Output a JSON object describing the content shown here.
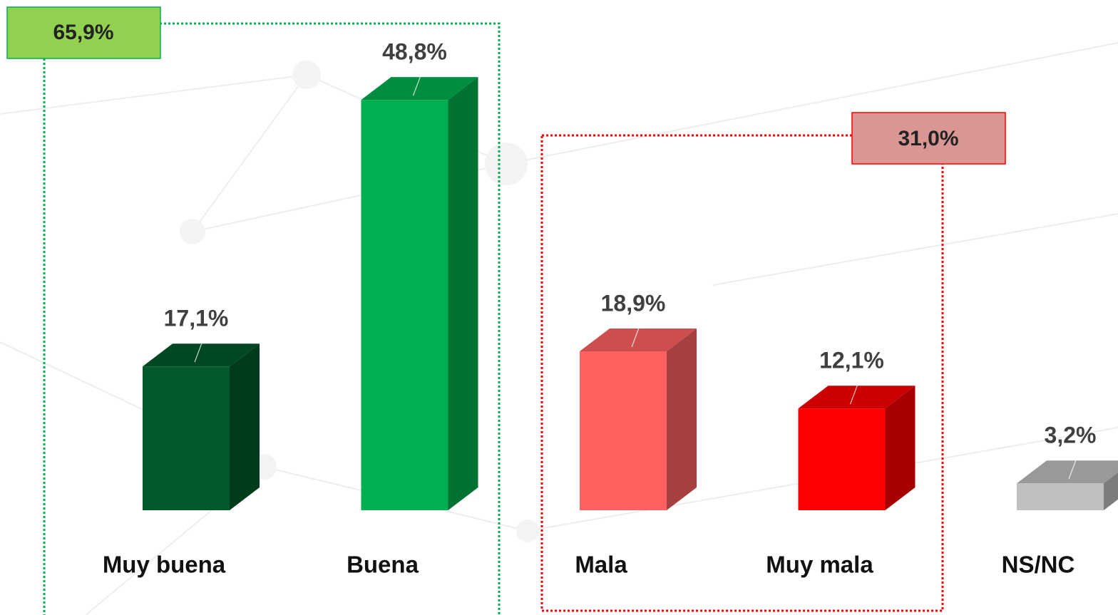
{
  "chart_data": {
    "type": "bar3d",
    "categories": [
      "Muy buena",
      "Buena",
      "Mala",
      "Muy mala",
      "NS/NC"
    ],
    "values": [
      17.1,
      48.8,
      18.9,
      12.1,
      3.2
    ],
    "value_labels": [
      "17,1%",
      "48,8%",
      "18,9%",
      "12,1%",
      "3,2%"
    ],
    "colors": [
      "#005a2b",
      "#00b050",
      "#ff6161",
      "#ff0000",
      "#bfbfbf"
    ],
    "annotations": [
      {
        "text": "65,9%",
        "color": "#00b050",
        "fill": "#92d050"
      },
      {
        "text": "31,0%",
        "color": "#ff0000",
        "fill": "#da9694"
      }
    ]
  }
}
